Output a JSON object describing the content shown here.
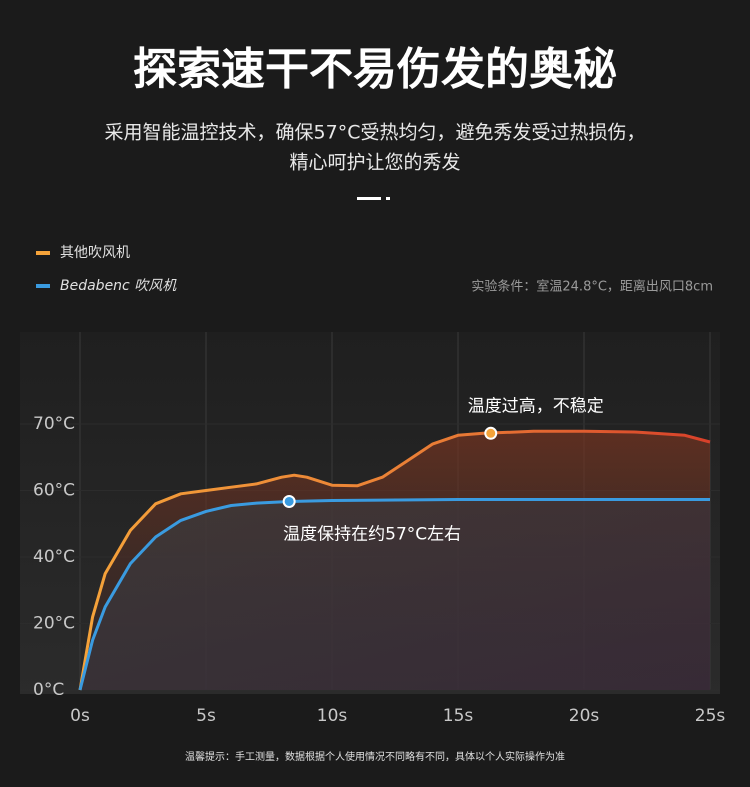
{
  "chart_data": {
    "type": "line",
    "title": "探索速干不易伤发的奥秘",
    "subtitle": [
      "采用智能温控技术，确保57°C受热均匀，避免秀发受过热损伤，",
      "精心呵护让您的秀发"
    ],
    "note": "实验条件：室温24.8°C，距离出风口8cm",
    "footnote": "温馨提示：手工测量，数据根据个人使用情况不同略有不同，具体以个人实际操作为准",
    "xlim": [
      0,
      25
    ],
    "xticks": [
      {
        "value": 0,
        "label": "0s"
      },
      {
        "value": 5,
        "label": "5s"
      },
      {
        "value": 10,
        "label": "10s"
      },
      {
        "value": 15,
        "label": "15s"
      },
      {
        "value": 20,
        "label": "20s"
      },
      {
        "value": 25,
        "label": "25s"
      }
    ],
    "yticks": [
      {
        "value": 0,
        "label": "0°C"
      },
      {
        "value": 20,
        "label": "20°C"
      },
      {
        "value": 40,
        "label": "40°C"
      },
      {
        "value": 60,
        "label": "60°C"
      },
      {
        "value": 70,
        "label": "70°C"
      }
    ],
    "grid": true,
    "series": [
      {
        "name": "其他吹风机",
        "color": "#f5a33a",
        "x": [
          0,
          0.5,
          1,
          2,
          3,
          4,
          5,
          6,
          7,
          8,
          8.5,
          9,
          10,
          11,
          12,
          13,
          14,
          15,
          16,
          18,
          20,
          22,
          24,
          25
        ],
        "values": [
          0,
          22,
          35,
          48,
          56,
          59,
          60,
          60.5,
          61,
          62,
          62.3,
          62,
          60.8,
          60.7,
          62,
          64.5,
          67,
          68.3,
          68.6,
          68.9,
          68.9,
          68.8,
          68.3,
          67.3
        ]
      },
      {
        "name": "Bedabenc 吹风机",
        "color": "#3a9be0",
        "x": [
          0,
          0.5,
          1,
          2,
          3,
          4,
          5,
          6,
          7,
          8.3,
          10,
          15,
          20,
          25
        ],
        "values": [
          0,
          15,
          25,
          38,
          46,
          51,
          53.7,
          55.5,
          56.2,
          56.7,
          57,
          57.3,
          57.3,
          57.3
        ]
      }
    ],
    "annotations": [
      {
        "text": "温度过高，不稳定",
        "x": 16.3,
        "y": 68.6
      },
      {
        "text": "温度保持在约57°C左右",
        "x": 8.3,
        "y": 56.7
      }
    ]
  }
}
